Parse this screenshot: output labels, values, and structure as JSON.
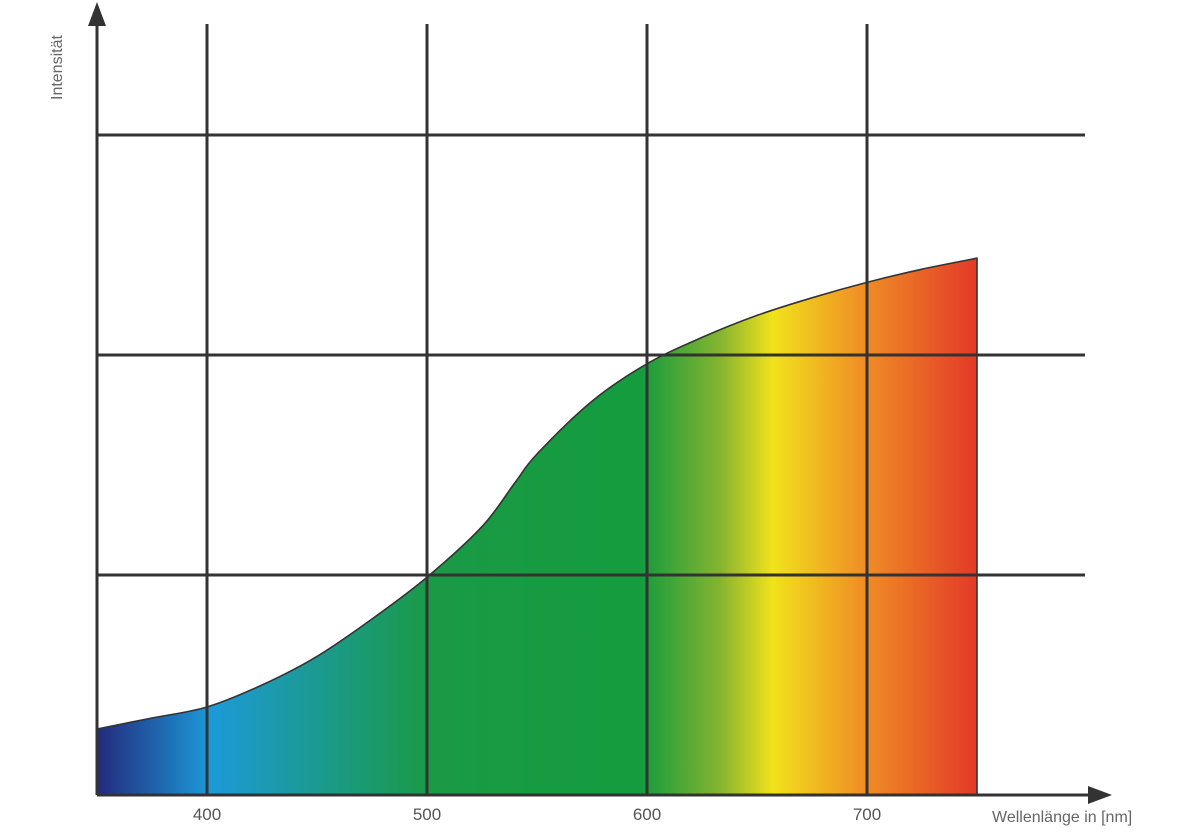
{
  "chart_data": {
    "type": "area",
    "title": "",
    "xlabel": "Wellenlänge in [nm]",
    "ylabel": "Intensität",
    "x_ticks": [
      "400",
      "500",
      "600",
      "700"
    ],
    "xlim": [
      350,
      750
    ],
    "ylim": [
      0,
      3
    ],
    "y_gridlines": [
      1,
      2,
      3
    ],
    "grid": true,
    "fill": "visible-spectrum-gradient",
    "gradient_colors": [
      "#232a7c",
      "#1c9ad8",
      "#1a9a45",
      "#149c3e",
      "#86b430",
      "#f1e21b",
      "#f09025",
      "#e33b28"
    ],
    "line_color": "#333333",
    "series": [
      {
        "x": [
          350,
          375,
          400,
          425,
          450,
          475,
          500,
          525,
          540,
          550,
          575,
          600,
          625,
          650,
          675,
          700,
          725,
          750
        ],
        "y": [
          0.3,
          0.35,
          0.4,
          0.5,
          0.63,
          0.8,
          0.99,
          1.22,
          1.42,
          1.55,
          1.79,
          1.96,
          2.08,
          2.18,
          2.26,
          2.33,
          2.39,
          2.44
        ]
      }
    ]
  }
}
